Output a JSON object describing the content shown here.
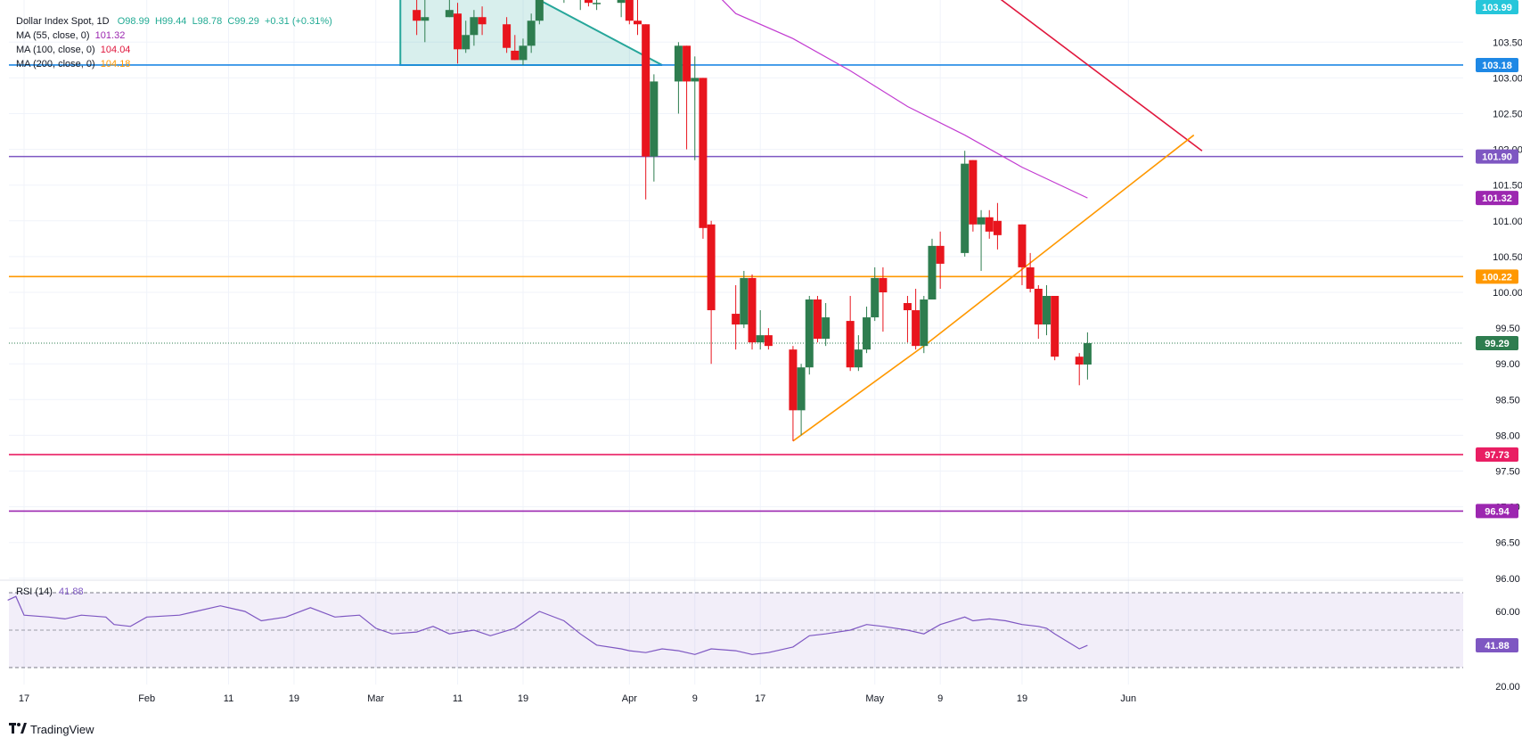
{
  "legend": {
    "symbol": "Dollar Index Spot, 1D",
    "open": "O98.99",
    "high": "H99.44",
    "low": "L98.78",
    "close": "C99.29",
    "change": "+0.31 (+0.31%)",
    "ma55_label": "MA (55, close, 0)",
    "ma55_value": "101.32",
    "ma100_label": "MA (100, close, 0)",
    "ma100_value": "104.04",
    "ma200_label": "MA (200, close, 0)",
    "ma200_value": "104.18",
    "rsi_label": "RSI (14)",
    "rsi_value": "41.88"
  },
  "brand": "TradingView",
  "colors": {
    "up": "#2e7d4f",
    "down": "#e8151d",
    "ma55": "#c23cd1",
    "ma100": "#e0173d",
    "ma200": "#ff9800",
    "rsi": "#7e57c2",
    "triangle": "#26a69a"
  },
  "chart_data": {
    "type": "candlestick",
    "y_axis": {
      "range": [
        95.95,
        104.15
      ],
      "ticks": [
        "103.50",
        "103.00",
        "102.50",
        "102.00",
        "101.50",
        "101.00",
        "100.50",
        "100.00",
        "99.50",
        "99.00",
        "98.50",
        "98.00",
        "97.50",
        "97.00",
        "96.50",
        "96.00"
      ]
    },
    "x_axis": {
      "ticks": [
        "17",
        "Feb",
        "11",
        "19",
        "Mar",
        "11",
        "19",
        "Apr",
        "9",
        "17",
        "May",
        "9",
        "19",
        "Jun"
      ]
    },
    "price_labels": [
      {
        "value": "103.99",
        "color": "#26c6da"
      },
      {
        "value": "103.18",
        "color": "#1e88e5"
      },
      {
        "value": "101.90",
        "color": "#7e57c2"
      },
      {
        "value": "101.32",
        "color": "#9c27b0"
      },
      {
        "value": "100.22",
        "color": "#ff9800"
      },
      {
        "value": "99.29",
        "color": "#2e7d4f"
      },
      {
        "value": "97.73",
        "color": "#e91e63"
      },
      {
        "value": "96.94",
        "color": "#9c27b0"
      }
    ],
    "horizontal_lines": [
      {
        "value": 103.18,
        "color": "#1e88e5"
      },
      {
        "value": 101.9,
        "color": "#7e57c2"
      },
      {
        "value": 100.22,
        "color": "#ff9800"
      },
      {
        "value": 97.73,
        "color": "#e91e63"
      },
      {
        "value": 96.94,
        "color": "#9c27b0"
      }
    ],
    "last_close": 99.29,
    "candles": [
      {
        "date": "2025-03-06",
        "o": 103.95,
        "h": 104.15,
        "l": 103.6,
        "c": 103.8
      },
      {
        "date": "2025-03-07",
        "o": 103.8,
        "h": 104.1,
        "l": 103.5,
        "c": 103.85
      },
      {
        "date": "2025-03-10",
        "o": 103.85,
        "h": 104.15,
        "l": 103.85,
        "c": 103.95
      },
      {
        "date": "2025-03-11",
        "o": 103.9,
        "h": 104.05,
        "l": 103.2,
        "c": 103.4
      },
      {
        "date": "2025-03-12",
        "o": 103.4,
        "h": 103.8,
        "l": 103.35,
        "c": 103.6
      },
      {
        "date": "2025-03-13",
        "o": 103.6,
        "h": 103.95,
        "l": 103.45,
        "c": 103.85
      },
      {
        "date": "2025-03-14",
        "o": 103.85,
        "h": 104.0,
        "l": 103.6,
        "c": 103.75
      },
      {
        "date": "2025-03-17",
        "o": 103.75,
        "h": 103.85,
        "l": 103.35,
        "c": 103.42
      },
      {
        "date": "2025-03-18",
        "o": 103.38,
        "h": 103.6,
        "l": 103.25,
        "c": 103.25
      },
      {
        "date": "2025-03-19",
        "o": 103.25,
        "h": 103.55,
        "l": 103.18,
        "c": 103.45
      },
      {
        "date": "2025-03-20",
        "o": 103.45,
        "h": 103.9,
        "l": 103.35,
        "c": 103.8
      },
      {
        "date": "2025-03-21",
        "o": 103.8,
        "h": 104.15,
        "l": 103.75,
        "c": 104.1
      },
      {
        "date": "2025-03-24",
        "o": 104.15,
        "h": 104.3,
        "l": 104.05,
        "c": 104.2
      },
      {
        "date": "2025-03-25",
        "o": 104.2,
        "h": 104.35,
        "l": 104.1,
        "c": 104.15
      },
      {
        "date": "2025-03-26",
        "o": 104.15,
        "h": 104.4,
        "l": 103.95,
        "c": 104.25
      },
      {
        "date": "2025-03-27",
        "o": 104.25,
        "h": 104.35,
        "l": 104.0,
        "c": 104.05
      },
      {
        "date": "2025-03-28",
        "o": 104.05,
        "h": 104.15,
        "l": 103.95,
        "c": 104.05
      },
      {
        "date": "2025-03-31",
        "o": 104.05,
        "h": 104.2,
        "l": 103.85,
        "c": 104.15
      },
      {
        "date": "2025-04-01",
        "o": 104.15,
        "h": 104.3,
        "l": 103.75,
        "c": 103.8
      },
      {
        "date": "2025-04-02",
        "o": 103.8,
        "h": 104.15,
        "l": 103.6,
        "c": 103.75
      },
      {
        "date": "2025-04-03",
        "o": 103.75,
        "h": 103.75,
        "l": 101.3,
        "c": 101.9
      },
      {
        "date": "2025-04-04",
        "o": 101.9,
        "h": 103.05,
        "l": 101.55,
        "c": 102.95
      },
      {
        "date": "2025-04-07",
        "o": 102.95,
        "h": 103.5,
        "l": 102.5,
        "c": 103.45
      },
      {
        "date": "2025-04-08",
        "o": 103.45,
        "h": 103.45,
        "l": 102.0,
        "c": 102.95
      },
      {
        "date": "2025-04-09",
        "o": 102.95,
        "h": 103.3,
        "l": 101.85,
        "c": 103.0
      },
      {
        "date": "2025-04-10",
        "o": 103.0,
        "h": 103.0,
        "l": 100.75,
        "c": 100.9
      },
      {
        "date": "2025-04-11",
        "o": 100.95,
        "h": 101.0,
        "l": 99.0,
        "c": 99.75
      },
      {
        "date": "2025-04-14",
        "o": 99.7,
        "h": 100.1,
        "l": 99.2,
        "c": 99.55
      },
      {
        "date": "2025-04-15",
        "o": 99.55,
        "h": 100.3,
        "l": 99.5,
        "c": 100.2
      },
      {
        "date": "2025-04-16",
        "o": 100.2,
        "h": 100.25,
        "l": 99.2,
        "c": 99.3
      },
      {
        "date": "2025-04-17",
        "o": 99.3,
        "h": 99.75,
        "l": 99.2,
        "c": 99.4
      },
      {
        "date": "2025-04-18",
        "o": 99.4,
        "h": 99.5,
        "l": 99.2,
        "c": 99.25
      },
      {
        "date": "2025-04-21",
        "o": 99.2,
        "h": 99.25,
        "l": 97.92,
        "c": 98.35
      },
      {
        "date": "2025-04-22",
        "o": 98.35,
        "h": 99.0,
        "l": 98.0,
        "c": 98.95
      },
      {
        "date": "2025-04-23",
        "o": 98.95,
        "h": 99.95,
        "l": 98.85,
        "c": 99.9
      },
      {
        "date": "2025-04-24",
        "o": 99.9,
        "h": 99.95,
        "l": 99.3,
        "c": 99.35
      },
      {
        "date": "2025-04-25",
        "o": 99.35,
        "h": 99.85,
        "l": 99.25,
        "c": 99.65
      },
      {
        "date": "2025-04-28",
        "o": 99.6,
        "h": 99.95,
        "l": 98.9,
        "c": 98.95
      },
      {
        "date": "2025-04-29",
        "o": 98.95,
        "h": 99.4,
        "l": 98.9,
        "c": 99.2
      },
      {
        "date": "2025-04-30",
        "o": 99.2,
        "h": 99.8,
        "l": 99.15,
        "c": 99.65
      },
      {
        "date": "2025-05-01",
        "o": 99.65,
        "h": 100.35,
        "l": 99.6,
        "c": 100.2
      },
      {
        "date": "2025-05-02",
        "o": 100.2,
        "h": 100.35,
        "l": 99.45,
        "c": 100.0
      },
      {
        "date": "2025-05-05",
        "o": 99.85,
        "h": 99.95,
        "l": 99.3,
        "c": 99.75
      },
      {
        "date": "2025-05-06",
        "o": 99.75,
        "h": 100.05,
        "l": 99.2,
        "c": 99.25
      },
      {
        "date": "2025-05-07",
        "o": 99.25,
        "h": 99.95,
        "l": 99.15,
        "c": 99.9
      },
      {
        "date": "2025-05-08",
        "o": 99.9,
        "h": 100.75,
        "l": 99.9,
        "c": 100.65
      },
      {
        "date": "2025-05-09",
        "o": 100.65,
        "h": 100.85,
        "l": 100.05,
        "c": 100.4
      },
      {
        "date": "2025-05-12",
        "o": 100.55,
        "h": 101.98,
        "l": 100.5,
        "c": 101.8
      },
      {
        "date": "2025-05-13",
        "o": 101.85,
        "h": 101.85,
        "l": 100.85,
        "c": 100.95
      },
      {
        "date": "2025-05-14",
        "o": 100.95,
        "h": 101.15,
        "l": 100.3,
        "c": 101.05
      },
      {
        "date": "2025-05-15",
        "o": 101.05,
        "h": 101.15,
        "l": 100.75,
        "c": 100.85
      },
      {
        "date": "2025-05-16",
        "o": 101.0,
        "h": 101.25,
        "l": 100.6,
        "c": 100.8
      },
      {
        "date": "2025-05-19",
        "o": 100.95,
        "h": 100.95,
        "l": 100.1,
        "c": 100.35
      },
      {
        "date": "2025-05-20",
        "o": 100.35,
        "h": 100.55,
        "l": 100.0,
        "c": 100.05
      },
      {
        "date": "2025-05-21",
        "o": 100.05,
        "h": 100.1,
        "l": 99.35,
        "c": 99.55
      },
      {
        "date": "2025-05-22",
        "o": 99.55,
        "h": 100.1,
        "l": 99.4,
        "c": 99.95
      },
      {
        "date": "2025-05-23",
        "o": 99.95,
        "h": 99.95,
        "l": 99.05,
        "c": 99.1
      },
      {
        "date": "2025-05-26",
        "o": 99.1,
        "h": 99.15,
        "l": 98.7,
        "c": 98.99
      },
      {
        "date": "2025-05-27",
        "o": 98.99,
        "h": 99.44,
        "l": 98.78,
        "c": 99.29
      }
    ],
    "ma55": [
      {
        "date": "2025-04-01",
        "value": 105.5
      },
      {
        "date": "2025-04-08",
        "value": 104.6
      },
      {
        "date": "2025-04-14",
        "value": 103.9
      },
      {
        "date": "2025-04-21",
        "value": 103.55
      },
      {
        "date": "2025-04-28",
        "value": 103.1
      },
      {
        "date": "2025-05-05",
        "value": 102.6
      },
      {
        "date": "2025-05-12",
        "value": 102.2
      },
      {
        "date": "2025-05-19",
        "value": 101.75
      },
      {
        "date": "2025-05-27",
        "value": 101.32
      }
    ],
    "ma100": [
      {
        "date": "2025-04-22",
        "value": 106.2
      },
      {
        "date": "2025-06-10",
        "value": 101.98
      }
    ],
    "trendline_support": [
      {
        "date": "2025-04-21",
        "value": 97.92
      },
      {
        "date": "2025-05-07",
        "value": 99.25
      },
      {
        "date": "2025-06-09",
        "value": 102.2
      }
    ],
    "triangle": [
      {
        "date": "2025-03-04",
        "value": 104.15
      },
      {
        "date": "2025-03-04",
        "value": 103.18
      },
      {
        "date": "2025-04-05",
        "value": 103.18
      },
      {
        "date": "2025-03-20",
        "value": 104.15
      }
    ],
    "rsi": {
      "range": [
        20,
        80
      ],
      "ticks": [
        "60.00",
        "20.00"
      ],
      "bands": [
        30,
        70
      ],
      "current": "41.88",
      "values": [
        {
          "date": "2025-01-15",
          "value": 66
        },
        {
          "date": "2025-01-16",
          "value": 68
        },
        {
          "date": "2025-01-17",
          "value": 58
        },
        {
          "date": "2025-01-20",
          "value": 57
        },
        {
          "date": "2025-01-22",
          "value": 56
        },
        {
          "date": "2025-01-24",
          "value": 58
        },
        {
          "date": "2025-01-27",
          "value": 57
        },
        {
          "date": "2025-01-28",
          "value": 53
        },
        {
          "date": "2025-01-30",
          "value": 52
        },
        {
          "date": "2025-02-01",
          "value": 57
        },
        {
          "date": "2025-02-05",
          "value": 58
        },
        {
          "date": "2025-02-07",
          "value": 60
        },
        {
          "date": "2025-02-10",
          "value": 63
        },
        {
          "date": "2025-02-13",
          "value": 60
        },
        {
          "date": "2025-02-15",
          "value": 55
        },
        {
          "date": "2025-02-18",
          "value": 57
        },
        {
          "date": "2025-02-21",
          "value": 62
        },
        {
          "date": "2025-02-24",
          "value": 57
        },
        {
          "date": "2025-02-27",
          "value": 58
        },
        {
          "date": "2025-03-01",
          "value": 51
        },
        {
          "date": "2025-03-03",
          "value": 48
        },
        {
          "date": "2025-03-06",
          "value": 49
        },
        {
          "date": "2025-03-08",
          "value": 52
        },
        {
          "date": "2025-03-10",
          "value": 48
        },
        {
          "date": "2025-03-13",
          "value": 50
        },
        {
          "date": "2025-03-15",
          "value": 47
        },
        {
          "date": "2025-03-18",
          "value": 51
        },
        {
          "date": "2025-03-21",
          "value": 60
        },
        {
          "date": "2025-03-24",
          "value": 55
        },
        {
          "date": "2025-03-26",
          "value": 48
        },
        {
          "date": "2025-03-28",
          "value": 42
        },
        {
          "date": "2025-03-31",
          "value": 40
        },
        {
          "date": "2025-04-01",
          "value": 39
        },
        {
          "date": "2025-04-03",
          "value": 38
        },
        {
          "date": "2025-04-05",
          "value": 40
        },
        {
          "date": "2025-04-07",
          "value": 39
        },
        {
          "date": "2025-04-09",
          "value": 37
        },
        {
          "date": "2025-04-11",
          "value": 40
        },
        {
          "date": "2025-04-14",
          "value": 39
        },
        {
          "date": "2025-04-16",
          "value": 37
        },
        {
          "date": "2025-04-18",
          "value": 38
        },
        {
          "date": "2025-04-21",
          "value": 41
        },
        {
          "date": "2025-04-23",
          "value": 47
        },
        {
          "date": "2025-04-25",
          "value": 48
        },
        {
          "date": "2025-04-28",
          "value": 50
        },
        {
          "date": "2025-04-30",
          "value": 53
        },
        {
          "date": "2025-05-02",
          "value": 52
        },
        {
          "date": "2025-05-05",
          "value": 50
        },
        {
          "date": "2025-05-07",
          "value": 48
        },
        {
          "date": "2025-05-09",
          "value": 53
        },
        {
          "date": "2025-05-12",
          "value": 57
        },
        {
          "date": "2025-05-13",
          "value": 55
        },
        {
          "date": "2025-05-15",
          "value": 56
        },
        {
          "date": "2025-05-17",
          "value": 55
        },
        {
          "date": "2025-05-19",
          "value": 53
        },
        {
          "date": "2025-05-21",
          "value": 52
        },
        {
          "date": "2025-05-22",
          "value": 51
        },
        {
          "date": "2025-05-23",
          "value": 48
        },
        {
          "date": "2025-05-26",
          "value": 40
        },
        {
          "date": "2025-05-27",
          "value": 41.88
        }
      ]
    }
  }
}
